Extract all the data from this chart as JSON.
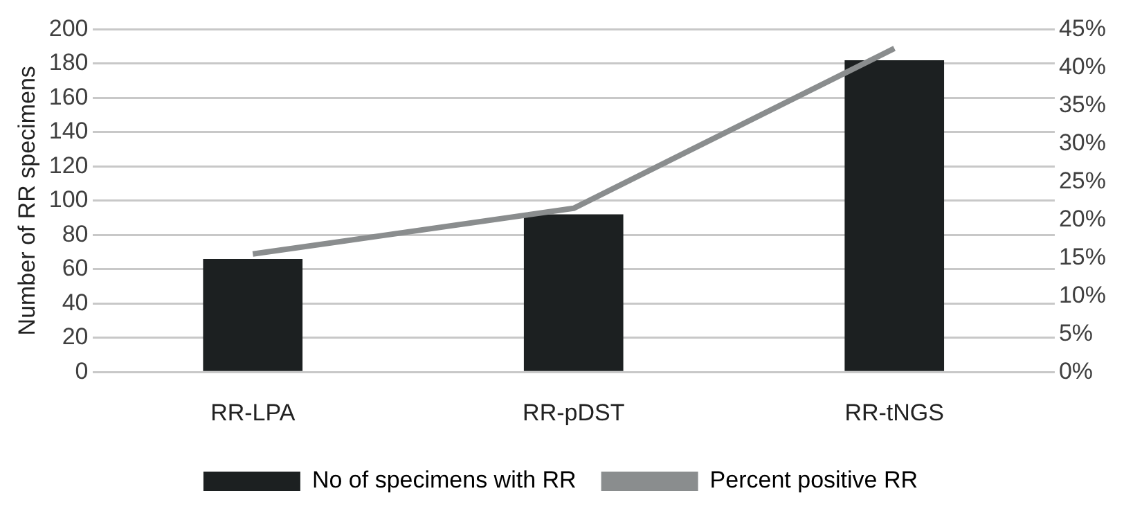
{
  "chart_data": {
    "type": "bar",
    "ylabel": "Number of RR specimens",
    "categories": [
      "RR-LPA",
      "RR-pDST",
      "RR-tNGS"
    ],
    "series": [
      {
        "name": "No of specimens with RR",
        "color": "#1c2021",
        "values": [
          66,
          92,
          182
        ]
      },
      {
        "name": "Percent positive RR",
        "color": "#8a8d8e",
        "type": "line",
        "axis": "y2",
        "marker": "none",
        "values": [
          15.5,
          21.5,
          42.5
        ]
      }
    ],
    "ylim": [
      0,
      200
    ],
    "yticks": [
      0,
      20,
      40,
      60,
      80,
      100,
      120,
      140,
      160,
      180,
      200
    ],
    "y2lim": [
      0,
      45
    ],
    "y2ticks": [
      {
        "value": 0,
        "label": "0%"
      },
      {
        "value": 5,
        "label": "5%"
      },
      {
        "value": 10,
        "label": "10%"
      },
      {
        "value": 15,
        "label": "15%"
      },
      {
        "value": 20,
        "label": "20%"
      },
      {
        "value": 25,
        "label": "25%"
      },
      {
        "value": 30,
        "label": "30%"
      },
      {
        "value": 35,
        "label": "35%"
      },
      {
        "value": 40,
        "label": "40%"
      },
      {
        "value": 45,
        "label": "45%"
      }
    ],
    "grid": "y",
    "legend": "bottom"
  }
}
